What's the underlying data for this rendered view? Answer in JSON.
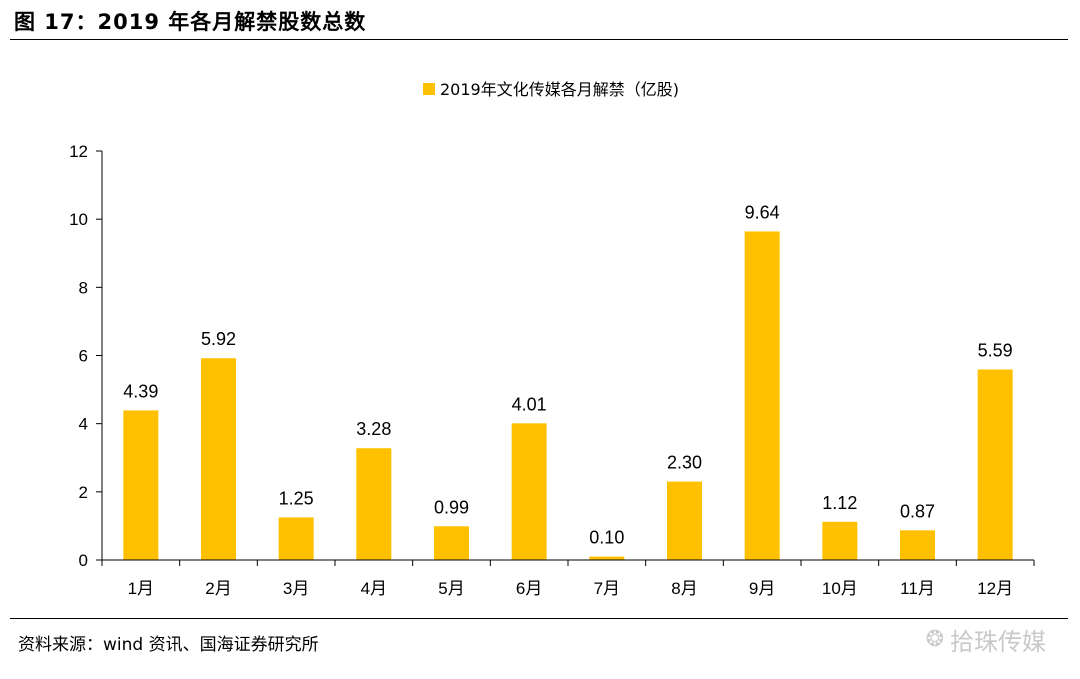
{
  "figure": {
    "title": "图 17：2019 年各月解禁股数总数",
    "source": "资料来源：wind 资讯、国海证券研究所",
    "watermark": "拾珠传媒",
    "watermark_icon": "wechat-icon"
  },
  "chart_data": {
    "type": "bar",
    "title": "",
    "categories": [
      "1月",
      "2月",
      "3月",
      "4月",
      "5月",
      "6月",
      "7月",
      "8月",
      "9月",
      "10月",
      "11月",
      "12月"
    ],
    "series": [
      {
        "name": "2019年文化传媒各月解禁（亿股)",
        "values": [
          4.39,
          5.92,
          1.25,
          3.28,
          0.99,
          4.01,
          0.1,
          2.3,
          9.64,
          1.12,
          0.87,
          5.59
        ],
        "labels": [
          "4.39",
          "5.92",
          "1.25",
          "3.28",
          "0.99",
          "4.01",
          "0.10",
          "2.30",
          "9.64",
          "1.12",
          "0.87",
          "5.59"
        ],
        "color": "#FFC000"
      }
    ],
    "xlabel": "",
    "ylabel": "",
    "ylim": [
      0,
      12
    ],
    "yticks": [
      0,
      2,
      4,
      6,
      8,
      10,
      12
    ],
    "ytick_labels": [
      "0",
      "2",
      "4",
      "6",
      "8",
      "10",
      "12"
    ],
    "grid": false,
    "legend_position": "top-center"
  }
}
